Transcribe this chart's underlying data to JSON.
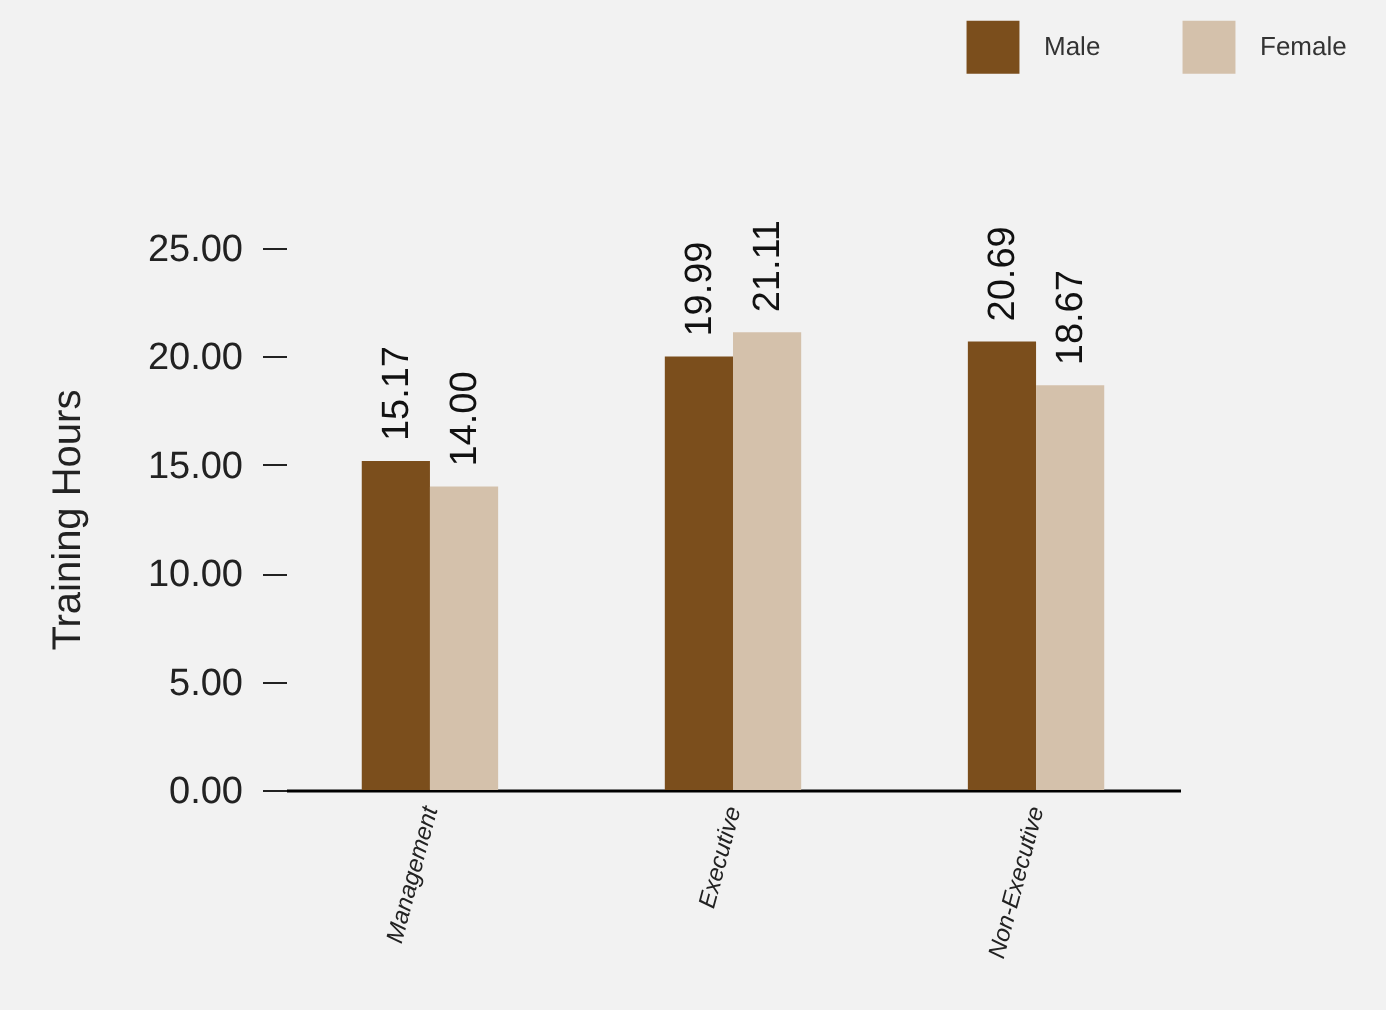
{
  "chart_data": {
    "type": "bar",
    "ylabel": "Training Hours",
    "categories": [
      "Management",
      "Executive",
      "Non-Executive"
    ],
    "series": [
      {
        "name": "Male",
        "color": "#7b4e1c",
        "values": [
          15.17,
          19.99,
          20.69
        ],
        "value_labels": [
          "15.17",
          "19.99",
          "20.69"
        ]
      },
      {
        "name": "Female",
        "color": "#d4c1ab",
        "values": [
          14.0,
          21.11,
          18.67
        ],
        "value_labels": [
          "14.00",
          "21.11",
          "18.67"
        ]
      }
    ],
    "ylim": [
      0,
      25
    ],
    "yticks": [
      {
        "value": 0,
        "label": "0.00"
      },
      {
        "value": 5,
        "label": "5.00"
      },
      {
        "value": 10,
        "label": "10.00"
      },
      {
        "value": 15,
        "label": "15.00"
      },
      {
        "value": 20,
        "label": "20.00"
      },
      {
        "value": 25,
        "label": "25.00"
      }
    ],
    "grid": false,
    "legend": "top right"
  }
}
